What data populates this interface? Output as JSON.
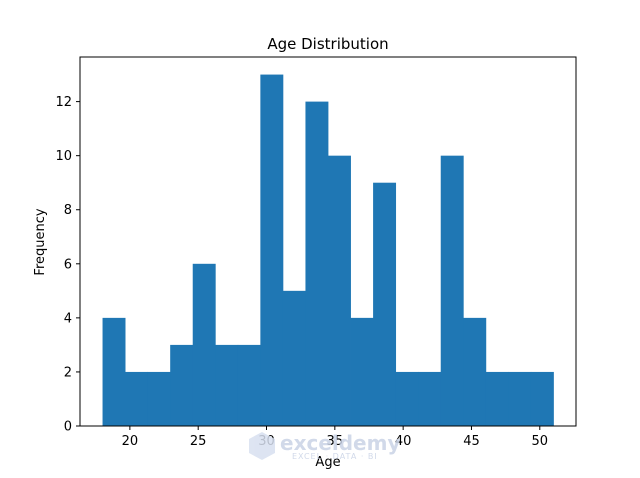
{
  "chart_data": {
    "type": "bar",
    "title": "Age Distribution",
    "xlabel": "Age",
    "ylabel": "Frequency",
    "xlim": [
      16.35,
      52.65
    ],
    "ylim": [
      0,
      13.65
    ],
    "xticks": [
      20,
      25,
      30,
      35,
      40,
      45,
      50
    ],
    "yticks": [
      0,
      2,
      4,
      6,
      8,
      10,
      12
    ],
    "bar_color": "#1f77b4",
    "grid": false,
    "bins": [
      {
        "x0": 18.0,
        "x1": 19.65,
        "value": 4
      },
      {
        "x0": 19.65,
        "x1": 21.3,
        "value": 2
      },
      {
        "x0": 21.3,
        "x1": 22.95,
        "value": 2
      },
      {
        "x0": 22.95,
        "x1": 24.6,
        "value": 3
      },
      {
        "x0": 24.6,
        "x1": 26.25,
        "value": 6
      },
      {
        "x0": 26.25,
        "x1": 27.9,
        "value": 3
      },
      {
        "x0": 27.9,
        "x1": 29.55,
        "value": 3
      },
      {
        "x0": 29.55,
        "x1": 31.2,
        "value": 13
      },
      {
        "x0": 31.2,
        "x1": 32.85,
        "value": 5
      },
      {
        "x0": 32.85,
        "x1": 34.5,
        "value": 12
      },
      {
        "x0": 34.5,
        "x1": 36.15,
        "value": 10
      },
      {
        "x0": 36.15,
        "x1": 37.8,
        "value": 4
      },
      {
        "x0": 37.8,
        "x1": 39.45,
        "value": 9
      },
      {
        "x0": 39.45,
        "x1": 41.1,
        "value": 2
      },
      {
        "x0": 41.1,
        "x1": 42.75,
        "value": 2
      },
      {
        "x0": 42.75,
        "x1": 44.4,
        "value": 10
      },
      {
        "x0": 44.4,
        "x1": 46.05,
        "value": 4
      },
      {
        "x0": 46.05,
        "x1": 47.7,
        "value": 2
      },
      {
        "x0": 47.7,
        "x1": 49.35,
        "value": 2
      },
      {
        "x0": 49.35,
        "x1": 51.0,
        "value": 2
      }
    ]
  },
  "watermark": {
    "brand": "exceldemy",
    "tagline": "EXCEL · DATA · BI"
  }
}
